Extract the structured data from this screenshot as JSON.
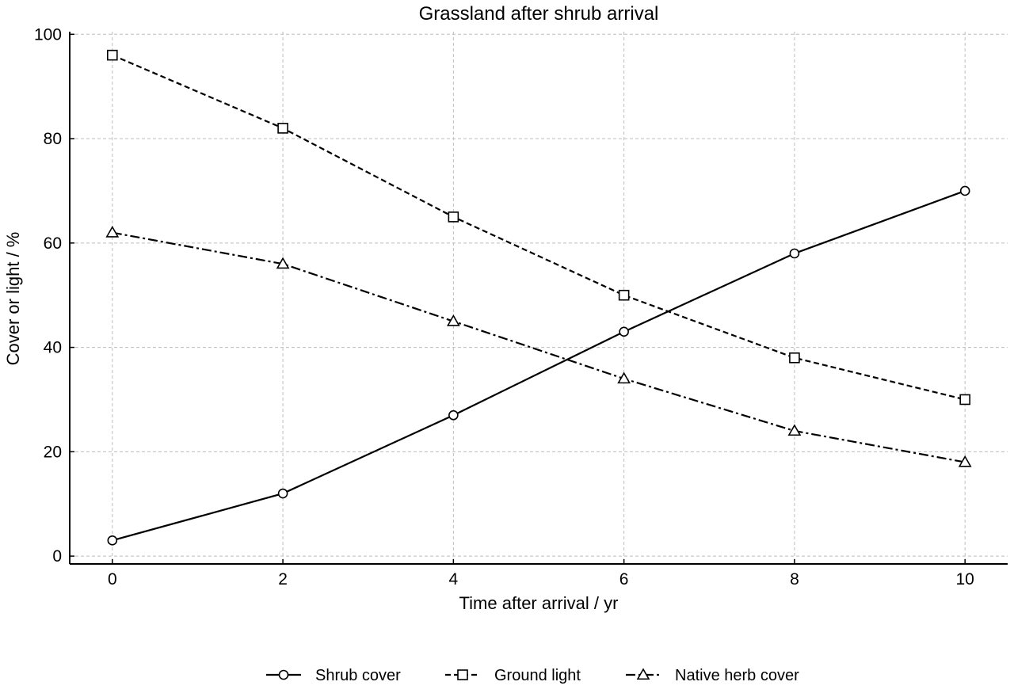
{
  "chart_data": {
    "type": "line",
    "title": "Grassland after shrub arrival",
    "xlabel": "Time after arrival / yr",
    "ylabel": "Cover or light / %",
    "x": [
      0,
      2,
      4,
      6,
      8,
      10
    ],
    "xlim": [
      -0.5,
      10.5
    ],
    "ylim": [
      -1.5,
      100.5
    ],
    "xticks": [
      0,
      2,
      4,
      6,
      8,
      10
    ],
    "yticks": [
      0,
      20,
      40,
      60,
      80,
      100
    ],
    "grid": true,
    "legend_position": "bottom-center",
    "series": [
      {
        "name": "Shrub cover",
        "values": [
          3,
          12,
          27,
          43,
          58,
          70
        ],
        "marker": "circle",
        "line_style": "solid",
        "color": "#000000"
      },
      {
        "name": "Ground light",
        "values": [
          96,
          82,
          65,
          50,
          38,
          30
        ],
        "marker": "square",
        "line_style": "dashed",
        "color": "#000000"
      },
      {
        "name": "Native herb cover",
        "values": [
          62,
          56,
          45,
          34,
          24,
          18
        ],
        "marker": "triangle",
        "line_style": "dashdot",
        "color": "#000000"
      }
    ]
  }
}
